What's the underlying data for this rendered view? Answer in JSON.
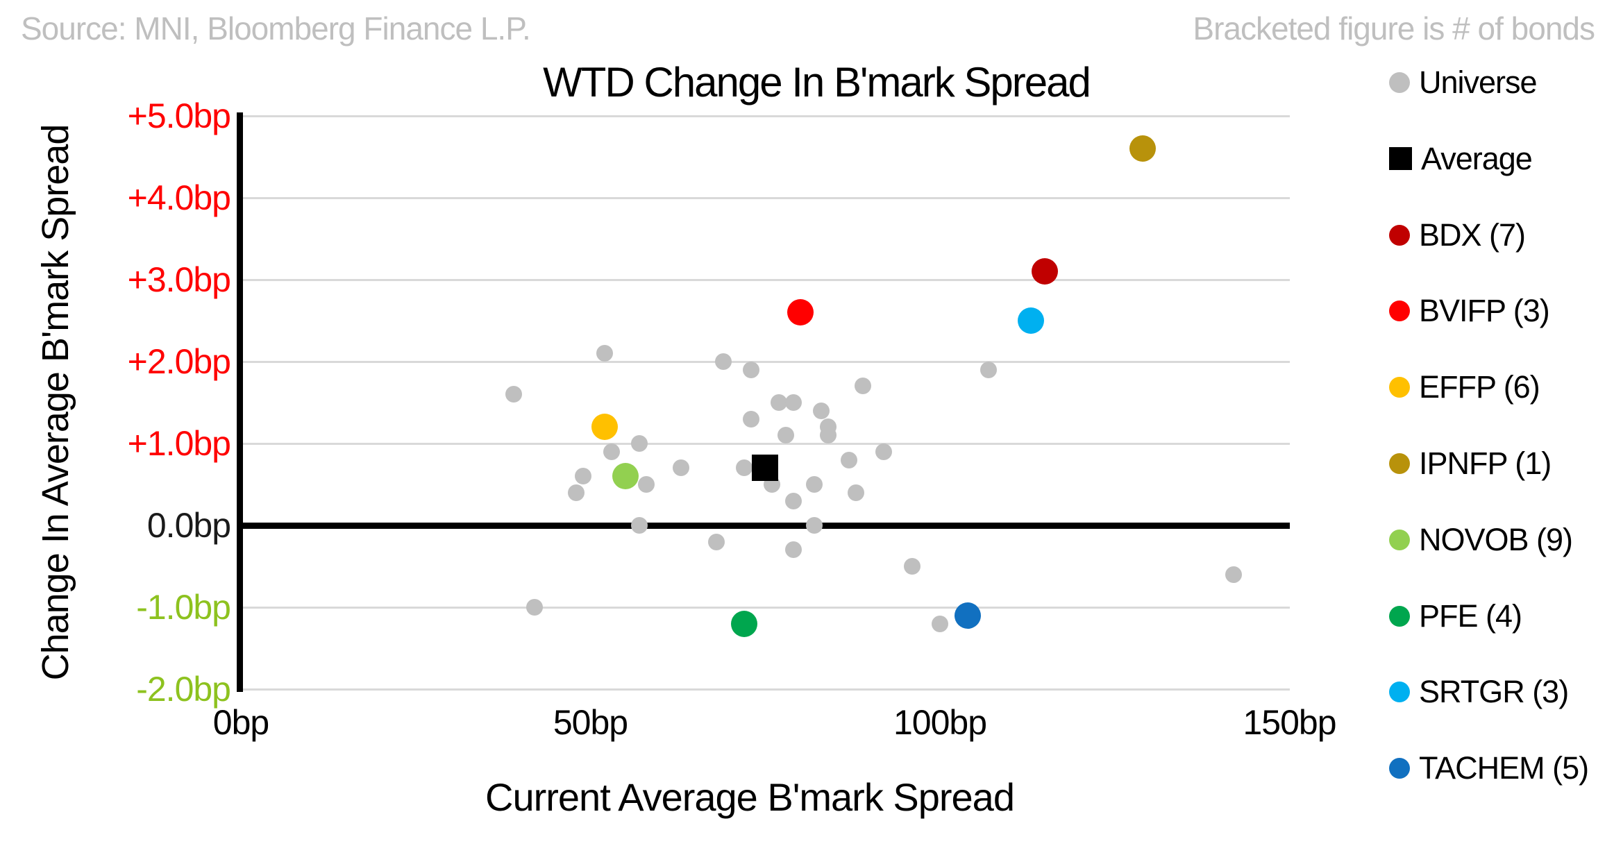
{
  "header": {
    "source_note": "Source: MNI, Bloomberg Finance L.P.",
    "bracket_note": "Bracketed figure is # of bonds"
  },
  "chart_data": {
    "type": "scatter",
    "title": "WTD Change In B'mark Spread",
    "xlabel": "Current Average B'mark Spread",
    "ylabel": "Change In Average B'mark Spread",
    "xlim": [
      0,
      150
    ],
    "ylim": [
      -2,
      5
    ],
    "x_unit": "bp",
    "y_unit": "bp",
    "grid": "horizontal-only",
    "legend_position": "right",
    "x_ticks": [
      {
        "value": 0,
        "label": "0bp"
      },
      {
        "value": 50,
        "label": "50bp"
      },
      {
        "value": 100,
        "label": "100bp"
      },
      {
        "value": 150,
        "label": "150bp"
      }
    ],
    "y_ticks": [
      {
        "value": 5,
        "label": "+5.0bp",
        "color": "#FF0000"
      },
      {
        "value": 4,
        "label": "+4.0bp",
        "color": "#FF0000"
      },
      {
        "value": 3,
        "label": "+3.0bp",
        "color": "#FF0000"
      },
      {
        "value": 2,
        "label": "+2.0bp",
        "color": "#FF0000"
      },
      {
        "value": 1,
        "label": "+1.0bp",
        "color": "#FF0000"
      },
      {
        "value": 0,
        "label": "0.0bp",
        "color": "#1A1A1A"
      },
      {
        "value": -1,
        "label": "-1.0bp",
        "color": "#8DC21F"
      },
      {
        "value": -2,
        "label": "-2.0bp",
        "color": "#8DC21F"
      }
    ],
    "colors": {
      "gridline": "#D9D9D9",
      "axis": "#000000",
      "muted_text": "#BFBFBF"
    },
    "series": [
      {
        "name": "Universe",
        "legend_label": "Universe",
        "marker": "circle",
        "color": "#BFBFBF",
        "point_size": 24,
        "points": [
          [
            52,
            2.1
          ],
          [
            39,
            1.6
          ],
          [
            57,
            1.0
          ],
          [
            53,
            0.9
          ],
          [
            49,
            0.6
          ],
          [
            48,
            0.4
          ],
          [
            58,
            0.5
          ],
          [
            63,
            0.7
          ],
          [
            57,
            0.0
          ],
          [
            42,
            -1.0
          ],
          [
            69,
            2.0
          ],
          [
            73,
            1.9
          ],
          [
            89,
            1.7
          ],
          [
            107,
            1.9
          ],
          [
            77,
            1.5
          ],
          [
            79,
            1.5
          ],
          [
            83,
            1.4
          ],
          [
            73,
            1.3
          ],
          [
            84,
            1.2
          ],
          [
            84,
            1.1
          ],
          [
            78,
            1.1
          ],
          [
            92,
            0.9
          ],
          [
            87,
            0.8
          ],
          [
            72,
            0.7
          ],
          [
            76,
            0.5
          ],
          [
            82,
            0.5
          ],
          [
            88,
            0.4
          ],
          [
            79,
            0.3
          ],
          [
            82,
            0.0
          ],
          [
            68,
            -0.2
          ],
          [
            79,
            -0.3
          ],
          [
            96,
            -0.5
          ],
          [
            100,
            -1.2
          ],
          [
            142,
            -0.6
          ]
        ]
      },
      {
        "name": "Average",
        "legend_label": "Average",
        "marker": "square",
        "color": "#000000",
        "point_size": 38,
        "points": [
          [
            75,
            0.7
          ]
        ]
      },
      {
        "name": "BDX",
        "legend_label": "BDX  (7)",
        "bonds": 7,
        "marker": "circle",
        "color": "#C00000",
        "point_size": 38,
        "points": [
          [
            115,
            3.1
          ]
        ]
      },
      {
        "name": "BVIFP",
        "legend_label": "BVIFP  (3)",
        "bonds": 3,
        "marker": "circle",
        "color": "#FF0000",
        "point_size": 38,
        "points": [
          [
            80,
            2.6
          ]
        ]
      },
      {
        "name": "EFFP",
        "legend_label": "EFFP  (6)",
        "bonds": 6,
        "marker": "circle",
        "color": "#FFC000",
        "point_size": 38,
        "points": [
          [
            52,
            1.2
          ]
        ]
      },
      {
        "name": "IPNFP",
        "legend_label": "IPNFP  (1)",
        "bonds": 1,
        "marker": "circle",
        "color": "#B8920B",
        "point_size": 38,
        "points": [
          [
            129,
            4.6
          ]
        ]
      },
      {
        "name": "NOVOB",
        "legend_label": "NOVOB  (9)",
        "bonds": 9,
        "marker": "circle",
        "color": "#92D050",
        "point_size": 38,
        "points": [
          [
            55,
            0.6
          ]
        ]
      },
      {
        "name": "PFE",
        "legend_label": "PFE  (4)",
        "bonds": 4,
        "marker": "circle",
        "color": "#00A64E",
        "point_size": 38,
        "points": [
          [
            72,
            -1.2
          ]
        ]
      },
      {
        "name": "SRTGR",
        "legend_label": "SRTGR  (3)",
        "bonds": 3,
        "marker": "circle",
        "color": "#00B0F0",
        "point_size": 38,
        "points": [
          [
            113,
            2.5
          ]
        ]
      },
      {
        "name": "TACHEM",
        "legend_label": "TACHEM  (5)",
        "bonds": 5,
        "marker": "circle",
        "color": "#1170C0",
        "point_size": 38,
        "points": [
          [
            104,
            -1.1
          ]
        ]
      }
    ]
  }
}
